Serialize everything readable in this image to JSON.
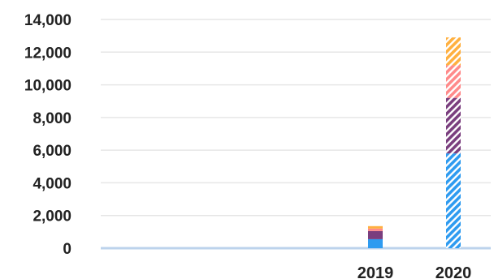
{
  "chart_data": {
    "type": "bar",
    "stacked": true,
    "categories": [
      "",
      "",
      "",
      "2019",
      "2020"
    ],
    "ylim": [
      0,
      14000
    ],
    "y_ticks": [
      0,
      2000,
      4000,
      6000,
      8000,
      10000,
      12000,
      14000
    ],
    "y_tick_labels": [
      "0",
      "2,000",
      "4,000",
      "6,000",
      "8,000",
      "10,000",
      "12,000",
      "14,000"
    ],
    "grid": true,
    "legend": "none",
    "series": [
      {
        "color": "#2e9bf0",
        "pattern": "solid-2019-hatched-2020",
        "values": [
          0,
          0,
          0,
          550,
          5800
        ]
      },
      {
        "color": "#7a3e7e",
        "pattern": "solid-2019-hatched-2020",
        "values": [
          0,
          0,
          0,
          500,
          3400
        ]
      },
      {
        "color": "#ff8a8a",
        "pattern": "solid-2019-hatched-2020",
        "values": [
          0,
          0,
          0,
          150,
          2000
        ]
      },
      {
        "color": "#ffb040",
        "pattern": "solid-2019-hatched-2020",
        "values": [
          0,
          0,
          0,
          150,
          1700
        ]
      }
    ],
    "baseline_color": "#bcd3ec",
    "grid_color": "#e6e6e6"
  }
}
